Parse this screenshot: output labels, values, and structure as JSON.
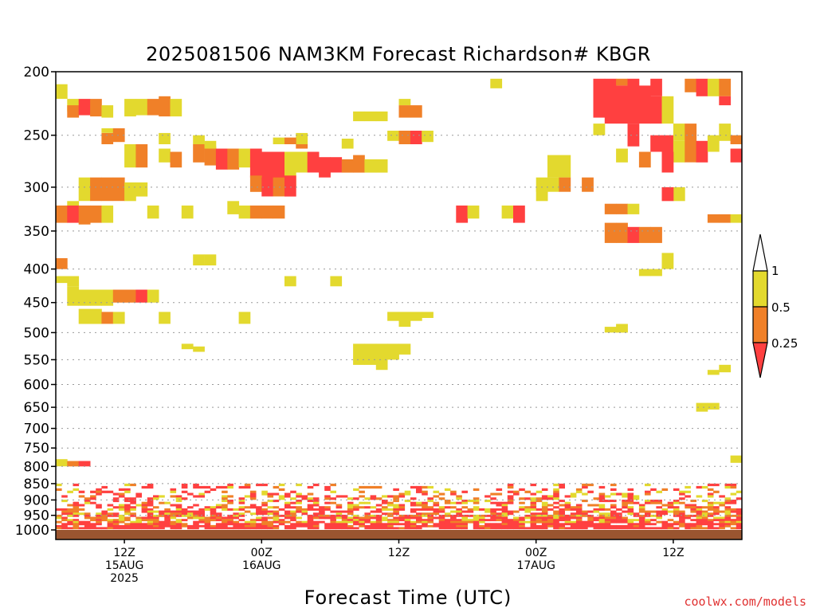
{
  "chart_data": {
    "type": "heatmap",
    "title": "2025081506 NAM3KM Forecast Richardson# KBGR",
    "xlabel": "Forecast Time (UTC)",
    "ylabel": "",
    "y_scale": "log",
    "ylim": [
      1000,
      200
    ],
    "xlim": [
      0,
      60
    ],
    "grid": "dotted horizontal lines at each pressure level",
    "y_ticks": [
      200,
      250,
      300,
      350,
      400,
      450,
      500,
      550,
      600,
      650,
      700,
      750,
      800,
      850,
      900,
      950,
      1000
    ],
    "x_ticks": [
      {
        "x": 6,
        "line1": "12Z",
        "line2": "15AUG",
        "line3": "2025"
      },
      {
        "x": 18,
        "line1": "00Z",
        "line2": "16AUG",
        "line3": ""
      },
      {
        "x": 30,
        "line1": "12Z",
        "line2": "",
        "line3": ""
      },
      {
        "x": 42,
        "line1": "00Z",
        "line2": "17AUG",
        "line3": ""
      },
      {
        "x": 54,
        "line1": "12Z",
        "line2": "",
        "line3": ""
      }
    ],
    "legend": {
      "placement": "right",
      "labels": [
        "1",
        "0.5",
        "0.25"
      ],
      "colors": {
        "above": "#ffffff",
        "upper": "#e3d92e",
        "mid": "#f08028",
        "low": "#ff4040"
      }
    },
    "color_key": {
      "1": "#e3d92e",
      "2": "#f08028",
      "3": "#ff4040"
    },
    "ground_color": "#9a5530",
    "blocks": [
      [
        0,
        209,
        1,
        220,
        1
      ],
      [
        1,
        220,
        1,
        230,
        1
      ],
      [
        1,
        225,
        1,
        235,
        2
      ],
      [
        2,
        220,
        1,
        233,
        3
      ],
      [
        3,
        220,
        1,
        234,
        2
      ],
      [
        4,
        225,
        1,
        235,
        1
      ],
      [
        6,
        220,
        1,
        234,
        1
      ],
      [
        7,
        220,
        1,
        233,
        1
      ],
      [
        8,
        220,
        1,
        233,
        2
      ],
      [
        9,
        218,
        1,
        234,
        2
      ],
      [
        10,
        220,
        1,
        234,
        1
      ],
      [
        4,
        244,
        1,
        248,
        1
      ],
      [
        4,
        248,
        1,
        258,
        2
      ],
      [
        5,
        244,
        1,
        256,
        2
      ],
      [
        6,
        258,
        1,
        280,
        1
      ],
      [
        7,
        258,
        1,
        280,
        2
      ],
      [
        9,
        248,
        1,
        258,
        1
      ],
      [
        9,
        262,
        1,
        275,
        1
      ],
      [
        10,
        265,
        1,
        280,
        2
      ],
      [
        12,
        250,
        1,
        258,
        1
      ],
      [
        12,
        258,
        1,
        275,
        2
      ],
      [
        13,
        260,
        1,
        278,
        2
      ],
      [
        14,
        262,
        1,
        282,
        3
      ],
      [
        15,
        262,
        1,
        282,
        2
      ],
      [
        16,
        262,
        1,
        280,
        1
      ],
      [
        17,
        262,
        1,
        290,
        3
      ],
      [
        18,
        265,
        1,
        300,
        3
      ],
      [
        19,
        265,
        1,
        300,
        3
      ],
      [
        20,
        265,
        1,
        300,
        1
      ],
      [
        21,
        265,
        1,
        285,
        1
      ],
      [
        22,
        265,
        1,
        285,
        3
      ],
      [
        23,
        270,
        1,
        290,
        3
      ],
      [
        24,
        270,
        1,
        285,
        3
      ],
      [
        25,
        272,
        1,
        285,
        2
      ],
      [
        26,
        268,
        1,
        285,
        2
      ],
      [
        27,
        272,
        1,
        285,
        1
      ],
      [
        28,
        272,
        1,
        285,
        1
      ],
      [
        17,
        288,
        1,
        305,
        2
      ],
      [
        18,
        290,
        1,
        310,
        3
      ],
      [
        19,
        290,
        1,
        310,
        2
      ],
      [
        20,
        288,
        1,
        310,
        3
      ],
      [
        13,
        255,
        1,
        262,
        1
      ],
      [
        21,
        248,
        1,
        258,
        1
      ],
      [
        21,
        258,
        1,
        262,
        2
      ],
      [
        19,
        252,
        1,
        258,
        1
      ],
      [
        20,
        252,
        1,
        258,
        2
      ],
      [
        26,
        230,
        1,
        238,
        1
      ],
      [
        27,
        230,
        1,
        238,
        1
      ],
      [
        28,
        230,
        1,
        238,
        1
      ],
      [
        25,
        253,
        1,
        262,
        1
      ],
      [
        30,
        220,
        1,
        225,
        1
      ],
      [
        30,
        225,
        1,
        235,
        2
      ],
      [
        31,
        225,
        1,
        235,
        2
      ],
      [
        29,
        246,
        1,
        255,
        1
      ],
      [
        30,
        246,
        1,
        258,
        2
      ],
      [
        31,
        246,
        1,
        258,
        3
      ],
      [
        32,
        246,
        1,
        256,
        1
      ],
      [
        2,
        290,
        1,
        315,
        1
      ],
      [
        3,
        290,
        1,
        315,
        2
      ],
      [
        4,
        290,
        1,
        315,
        2
      ],
      [
        5,
        290,
        1,
        315,
        2
      ],
      [
        6,
        295,
        1,
        315,
        1
      ],
      [
        7,
        295,
        1,
        310,
        1
      ],
      [
        1,
        315,
        1,
        325,
        1
      ],
      [
        0,
        320,
        1,
        340,
        2
      ],
      [
        1,
        320,
        1,
        340,
        3
      ],
      [
        2,
        320,
        1,
        342,
        2
      ],
      [
        3,
        320,
        1,
        340,
        2
      ],
      [
        4,
        320,
        1,
        340,
        1
      ],
      [
        8,
        320,
        1,
        335,
        1
      ],
      [
        11,
        320,
        1,
        335,
        1
      ],
      [
        15,
        315,
        1,
        330,
        1
      ],
      [
        16,
        320,
        1,
        335,
        1
      ],
      [
        17,
        320,
        1,
        335,
        2
      ],
      [
        18,
        320,
        1,
        335,
        2
      ],
      [
        19,
        320,
        1,
        335,
        2
      ],
      [
        0,
        385,
        1,
        400,
        2
      ],
      [
        0,
        410,
        1,
        420,
        1
      ],
      [
        1,
        410,
        1,
        425,
        1
      ],
      [
        1,
        425,
        1,
        455,
        1
      ],
      [
        2,
        430,
        1,
        455,
        1
      ],
      [
        3,
        430,
        1,
        455,
        1
      ],
      [
        4,
        430,
        1,
        455,
        1
      ],
      [
        5,
        430,
        1,
        450,
        2
      ],
      [
        6,
        430,
        1,
        450,
        2
      ],
      [
        7,
        430,
        1,
        450,
        3
      ],
      [
        8,
        430,
        1,
        450,
        1
      ],
      [
        2,
        460,
        1,
        485,
        1
      ],
      [
        3,
        460,
        1,
        485,
        1
      ],
      [
        4,
        465,
        1,
        485,
        2
      ],
      [
        5,
        465,
        1,
        485,
        1
      ],
      [
        9,
        465,
        1,
        485,
        1
      ],
      [
        12,
        380,
        1,
        395,
        1
      ],
      [
        13,
        380,
        1,
        395,
        1
      ],
      [
        16,
        465,
        1,
        485,
        1
      ],
      [
        20,
        410,
        1,
        425,
        1
      ],
      [
        26,
        520,
        1,
        560,
        1
      ],
      [
        27,
        520,
        1,
        560,
        1
      ],
      [
        28,
        520,
        1,
        570,
        1
      ],
      [
        29,
        520,
        1,
        550,
        1
      ],
      [
        30,
        520,
        1,
        540,
        1
      ],
      [
        29,
        465,
        1,
        480,
        1
      ],
      [
        30,
        465,
        1,
        490,
        1
      ],
      [
        31,
        465,
        1,
        480,
        1
      ],
      [
        32,
        465,
        1,
        475,
        1
      ],
      [
        24,
        410,
        1,
        425,
        1
      ],
      [
        11,
        520,
        1,
        530,
        1
      ],
      [
        12,
        525,
        1,
        535,
        1
      ],
      [
        38,
        205,
        1,
        212,
        1
      ],
      [
        47,
        205,
        1,
        235,
        3
      ],
      [
        48,
        205,
        1,
        240,
        3
      ],
      [
        49,
        205,
        1,
        210,
        2
      ],
      [
        49,
        210,
        1,
        240,
        3
      ],
      [
        50,
        205,
        1,
        240,
        3
      ],
      [
        51,
        210,
        1,
        240,
        3
      ],
      [
        52,
        205,
        1,
        218,
        3
      ],
      [
        52,
        218,
        1,
        240,
        3
      ],
      [
        53,
        218,
        1,
        240,
        1
      ],
      [
        50,
        240,
        1,
        260,
        3
      ],
      [
        47,
        240,
        1,
        250,
        1
      ],
      [
        55,
        205,
        1,
        215,
        2
      ],
      [
        56,
        205,
        1,
        218,
        3
      ],
      [
        57,
        205,
        1,
        218,
        1
      ],
      [
        58,
        205,
        1,
        218,
        2
      ],
      [
        58,
        218,
        1,
        225,
        3
      ],
      [
        52,
        250,
        1,
        265,
        3
      ],
      [
        53,
        250,
        1,
        265,
        3
      ],
      [
        51,
        265,
        1,
        280,
        2
      ],
      [
        54,
        240,
        1,
        255,
        1
      ],
      [
        54,
        255,
        1,
        275,
        1
      ],
      [
        55,
        240,
        1,
        275,
        2
      ],
      [
        56,
        255,
        1,
        275,
        3
      ],
      [
        57,
        250,
        1,
        265,
        1
      ],
      [
        58,
        240,
        1,
        255,
        1
      ],
      [
        59,
        250,
        1,
        258,
        2
      ],
      [
        59,
        262,
        1,
        275,
        3
      ],
      [
        49,
        262,
        1,
        275,
        1
      ],
      [
        53,
        265,
        1,
        285,
        3
      ],
      [
        43,
        268,
        1,
        290,
        1
      ],
      [
        44,
        268,
        1,
        290,
        1
      ],
      [
        42,
        290,
        1,
        305,
        1
      ],
      [
        43,
        290,
        1,
        305,
        1
      ],
      [
        44,
        290,
        1,
        305,
        2
      ],
      [
        46,
        290,
        1,
        305,
        2
      ],
      [
        48,
        318,
        1,
        330,
        2
      ],
      [
        49,
        318,
        1,
        330,
        2
      ],
      [
        50,
        318,
        1,
        330,
        1
      ],
      [
        54,
        300,
        1,
        315,
        1
      ],
      [
        53,
        300,
        1,
        315,
        3
      ],
      [
        35,
        320,
        1,
        340,
        3
      ],
      [
        36,
        320,
        1,
        335,
        1
      ],
      [
        39,
        320,
        1,
        335,
        1
      ],
      [
        40,
        320,
        1,
        340,
        3
      ],
      [
        42,
        300,
        1,
        315,
        1
      ],
      [
        49,
        340,
        1,
        365,
        2
      ],
      [
        50,
        345,
        1,
        365,
        3
      ],
      [
        51,
        345,
        1,
        365,
        2
      ],
      [
        52,
        345,
        1,
        365,
        2
      ],
      [
        48,
        340,
        1,
        365,
        2
      ],
      [
        53,
        378,
        1,
        400,
        1
      ],
      [
        58,
        330,
        1,
        340,
        2
      ],
      [
        57,
        330,
        1,
        340,
        2
      ],
      [
        59,
        330,
        1,
        340,
        1
      ],
      [
        51,
        400,
        1,
        410,
        1
      ],
      [
        52,
        400,
        1,
        410,
        1
      ],
      [
        48,
        490,
        1,
        500,
        1
      ],
      [
        49,
        485,
        1,
        500,
        1
      ],
      [
        57,
        570,
        1,
        580,
        1
      ],
      [
        58,
        560,
        1,
        575,
        1
      ],
      [
        0,
        780,
        1,
        800,
        1
      ],
      [
        1,
        785,
        1,
        800,
        2
      ],
      [
        2,
        785,
        1,
        800,
        3
      ],
      [
        56,
        640,
        1,
        660,
        1
      ],
      [
        57,
        640,
        1,
        655,
        1
      ],
      [
        59,
        770,
        1,
        790,
        1
      ]
    ]
  },
  "credit": "coolwx.com/models"
}
